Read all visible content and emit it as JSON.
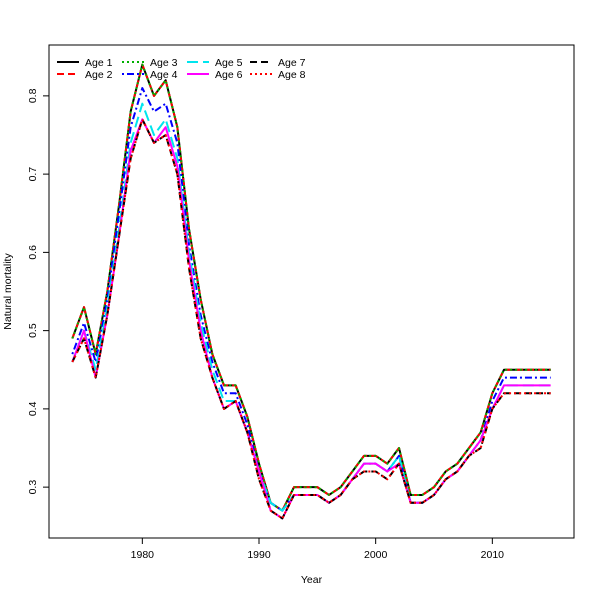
{
  "chart_data": {
    "type": "line",
    "title": "",
    "xlabel": "Year",
    "ylabel": "Natural mortality",
    "xlim": [
      1972,
      2017
    ],
    "ylim": [
      0.235,
      0.865
    ],
    "xticks": [
      1980,
      1990,
      2000,
      2010
    ],
    "yticks": [
      0.3,
      0.4,
      0.5,
      0.6,
      0.7,
      0.8
    ],
    "grid": false,
    "legend_position": "top-left",
    "x": [
      1974,
      1975,
      1976,
      1977,
      1978,
      1979,
      1980,
      1981,
      1982,
      1983,
      1984,
      1985,
      1986,
      1987,
      1988,
      1989,
      1990,
      1991,
      1992,
      1993,
      1994,
      1995,
      1996,
      1997,
      1998,
      1999,
      2000,
      2001,
      2002,
      2003,
      2004,
      2005,
      2006,
      2007,
      2008,
      2009,
      2010,
      2011,
      2012,
      2013,
      2014,
      2015
    ],
    "series": [
      {
        "name": "Age 1",
        "color": "#000000",
        "dash": "solid",
        "values": [
          0.49,
          0.53,
          0.47,
          0.55,
          0.66,
          0.78,
          0.84,
          0.8,
          0.82,
          0.76,
          0.63,
          0.54,
          0.47,
          0.43,
          0.43,
          0.39,
          0.33,
          0.28,
          0.27,
          0.3,
          0.3,
          0.3,
          0.29,
          0.3,
          0.32,
          0.34,
          0.34,
          0.33,
          0.35,
          0.29,
          0.29,
          0.3,
          0.32,
          0.33,
          0.35,
          0.37,
          0.42,
          0.45,
          0.45,
          0.45,
          0.45,
          0.45
        ]
      },
      {
        "name": "Age 2",
        "color": "#ff0000",
        "dash": "dashed",
        "values": [
          0.49,
          0.53,
          0.47,
          0.55,
          0.66,
          0.78,
          0.84,
          0.8,
          0.82,
          0.76,
          0.63,
          0.54,
          0.47,
          0.43,
          0.43,
          0.39,
          0.33,
          0.28,
          0.27,
          0.3,
          0.3,
          0.3,
          0.29,
          0.3,
          0.32,
          0.34,
          0.34,
          0.33,
          0.35,
          0.29,
          0.29,
          0.3,
          0.32,
          0.33,
          0.35,
          0.37,
          0.42,
          0.45,
          0.45,
          0.45,
          0.45,
          0.45
        ]
      },
      {
        "name": "Age 3",
        "color": "#00b000",
        "dash": "dotted",
        "values": [
          0.49,
          0.53,
          0.47,
          0.55,
          0.66,
          0.78,
          0.84,
          0.8,
          0.82,
          0.76,
          0.63,
          0.54,
          0.47,
          0.43,
          0.43,
          0.39,
          0.33,
          0.28,
          0.27,
          0.3,
          0.3,
          0.3,
          0.29,
          0.3,
          0.32,
          0.34,
          0.34,
          0.33,
          0.35,
          0.29,
          0.29,
          0.3,
          0.32,
          0.33,
          0.35,
          0.37,
          0.42,
          0.45,
          0.45,
          0.45,
          0.45,
          0.45
        ]
      },
      {
        "name": "Age 4",
        "color": "#0000ff",
        "dash": "dotdash",
        "values": [
          0.47,
          0.51,
          0.46,
          0.54,
          0.65,
          0.76,
          0.81,
          0.78,
          0.79,
          0.74,
          0.61,
          0.52,
          0.46,
          0.42,
          0.42,
          0.38,
          0.32,
          0.28,
          0.27,
          0.29,
          0.29,
          0.29,
          0.28,
          0.29,
          0.31,
          0.33,
          0.33,
          0.32,
          0.34,
          0.28,
          0.28,
          0.29,
          0.31,
          0.32,
          0.34,
          0.36,
          0.41,
          0.44,
          0.44,
          0.44,
          0.44,
          0.44
        ]
      },
      {
        "name": "Age 5",
        "color": "#00e5ee",
        "dash": "longdash",
        "values": [
          0.46,
          0.5,
          0.45,
          0.53,
          0.63,
          0.74,
          0.79,
          0.75,
          0.77,
          0.72,
          0.6,
          0.51,
          0.45,
          0.41,
          0.41,
          0.37,
          0.32,
          0.28,
          0.27,
          0.29,
          0.29,
          0.29,
          0.28,
          0.29,
          0.31,
          0.33,
          0.33,
          0.32,
          0.34,
          0.28,
          0.28,
          0.29,
          0.31,
          0.32,
          0.34,
          0.36,
          0.4,
          0.43,
          0.43,
          0.43,
          0.43,
          0.43
        ]
      },
      {
        "name": "Age 6",
        "color": "#ff00ff",
        "dash": "solid",
        "values": [
          0.46,
          0.5,
          0.44,
          0.52,
          0.62,
          0.73,
          0.77,
          0.74,
          0.76,
          0.71,
          0.59,
          0.5,
          0.44,
          0.4,
          0.41,
          0.37,
          0.32,
          0.27,
          0.26,
          0.29,
          0.29,
          0.29,
          0.28,
          0.29,
          0.31,
          0.33,
          0.33,
          0.32,
          0.33,
          0.28,
          0.28,
          0.29,
          0.31,
          0.32,
          0.34,
          0.36,
          0.4,
          0.43,
          0.43,
          0.43,
          0.43,
          0.43
        ]
      },
      {
        "name": "Age 7",
        "color": "#000000",
        "dash": "dashed",
        "values": [
          0.46,
          0.49,
          0.44,
          0.52,
          0.62,
          0.72,
          0.77,
          0.74,
          0.75,
          0.7,
          0.58,
          0.49,
          0.44,
          0.4,
          0.41,
          0.37,
          0.31,
          0.27,
          0.26,
          0.29,
          0.29,
          0.29,
          0.28,
          0.29,
          0.31,
          0.32,
          0.32,
          0.31,
          0.33,
          0.28,
          0.28,
          0.29,
          0.31,
          0.32,
          0.34,
          0.35,
          0.4,
          0.42,
          0.42,
          0.42,
          0.42,
          0.42
        ]
      },
      {
        "name": "Age 8",
        "color": "#ff0000",
        "dash": "dotted",
        "values": [
          0.46,
          0.49,
          0.44,
          0.52,
          0.62,
          0.72,
          0.77,
          0.74,
          0.75,
          0.7,
          0.58,
          0.49,
          0.44,
          0.4,
          0.41,
          0.37,
          0.31,
          0.27,
          0.26,
          0.29,
          0.29,
          0.29,
          0.28,
          0.29,
          0.31,
          0.32,
          0.32,
          0.31,
          0.33,
          0.28,
          0.28,
          0.29,
          0.31,
          0.32,
          0.34,
          0.35,
          0.4,
          0.42,
          0.42,
          0.42,
          0.42,
          0.42
        ]
      }
    ]
  }
}
